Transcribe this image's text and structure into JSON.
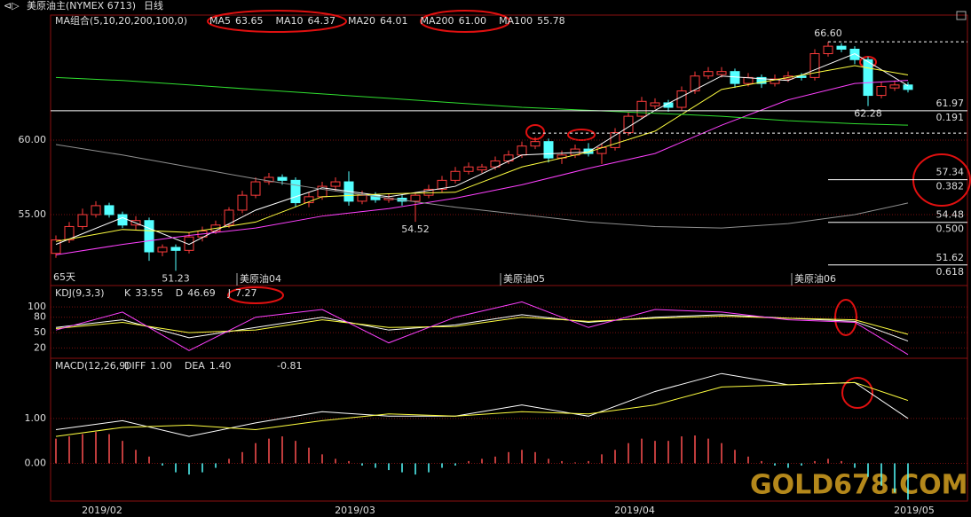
{
  "chart_data": [
    {
      "type": "candlestick",
      "title": "美原油主(NYMEX 6713)",
      "period": "日线",
      "indicator": "MA组合(5,10,20,200,100,0)",
      "up_color": "#ff3c3c",
      "down_color": "#54ffff",
      "ylim": [
        50.24,
        68.33
      ],
      "yticks": [
        {
          "value": 60,
          "label": "60.00"
        },
        {
          "value": 55,
          "label": "55.00"
        }
      ],
      "grid": true,
      "ohlc": [
        [
          52.4,
          53.6,
          52.1,
          53.3
        ],
        [
          53.3,
          54.5,
          53.1,
          54.2
        ],
        [
          54.2,
          55.4,
          54.0,
          55.0
        ],
        [
          55.0,
          55.9,
          54.8,
          55.6
        ],
        [
          55.6,
          55.8,
          54.8,
          55.0
        ],
        [
          55.0,
          55.2,
          54.1,
          54.3
        ],
        [
          54.3,
          54.9,
          54.0,
          54.6
        ],
        [
          54.6,
          54.8,
          51.9,
          52.5
        ],
        [
          52.5,
          53.0,
          52.2,
          52.8
        ],
        [
          52.8,
          53.0,
          51.23,
          52.6
        ],
        [
          52.6,
          53.8,
          52.4,
          53.5
        ],
        [
          53.5,
          54.2,
          53.2,
          53.9
        ],
        [
          53.9,
          54.6,
          53.7,
          54.3
        ],
        [
          54.3,
          55.5,
          54.1,
          55.3
        ],
        [
          55.3,
          56.6,
          55.1,
          56.3
        ],
        [
          56.3,
          57.5,
          56.1,
          57.2
        ],
        [
          57.2,
          57.8,
          57.0,
          57.5
        ],
        [
          57.5,
          57.7,
          57.0,
          57.3
        ],
        [
          57.3,
          57.5,
          55.5,
          55.8
        ],
        [
          55.8,
          56.5,
          55.5,
          56.2
        ],
        [
          56.2,
          57.2,
          56.0,
          56.9
        ],
        [
          56.9,
          57.5,
          56.6,
          57.2
        ],
        [
          57.2,
          57.9,
          55.6,
          55.9
        ],
        [
          55.9,
          56.6,
          55.7,
          56.3
        ],
        [
          56.3,
          56.5,
          55.8,
          56.0
        ],
        [
          56.0,
          56.4,
          55.8,
          56.1
        ],
        [
          56.1,
          56.3,
          55.6,
          55.9
        ],
        [
          55.9,
          56.5,
          54.52,
          56.3
        ],
        [
          56.3,
          57.0,
          56.1,
          56.7
        ],
        [
          56.7,
          57.6,
          56.5,
          57.3
        ],
        [
          57.3,
          58.2,
          57.1,
          57.9
        ],
        [
          57.9,
          58.5,
          57.7,
          58.2
        ],
        [
          58.0,
          58.4,
          57.8,
          58.2
        ],
        [
          58.2,
          58.9,
          58.0,
          58.6
        ],
        [
          58.6,
          59.3,
          58.4,
          59.0
        ],
        [
          59.0,
          59.9,
          58.8,
          59.6
        ],
        [
          59.6,
          60.2,
          59.4,
          59.9
        ],
        [
          59.9,
          60.1,
          58.5,
          58.8
        ],
        [
          58.8,
          59.3,
          58.4,
          59.0
        ],
        [
          59.0,
          59.7,
          58.8,
          59.4
        ],
        [
          59.4,
          59.8,
          58.9,
          59.1
        ],
        [
          59.1,
          59.8,
          58.4,
          59.5
        ],
        [
          59.5,
          60.8,
          59.3,
          60.5
        ],
        [
          60.5,
          61.9,
          60.3,
          61.6
        ],
        [
          61.6,
          62.9,
          61.4,
          62.6
        ],
        [
          62.3,
          62.8,
          62.1,
          62.5
        ],
        [
          62.5,
          62.7,
          61.9,
          62.2
        ],
        [
          62.2,
          63.6,
          62.0,
          63.3
        ],
        [
          63.3,
          64.6,
          63.1,
          64.3
        ],
        [
          64.3,
          64.9,
          64.1,
          64.6
        ],
        [
          64.4,
          64.9,
          64.2,
          64.6
        ],
        [
          64.6,
          64.8,
          63.5,
          63.8
        ],
        [
          63.8,
          64.5,
          63.6,
          64.2
        ],
        [
          64.2,
          64.4,
          63.5,
          63.8
        ],
        [
          63.8,
          64.4,
          63.6,
          64.1
        ],
        [
          64.1,
          64.6,
          63.9,
          64.3
        ],
        [
          64.3,
          64.5,
          64.0,
          64.2
        ],
        [
          64.2,
          66.1,
          64.0,
          65.8
        ],
        [
          65.8,
          66.6,
          65.6,
          66.3
        ],
        [
          66.3,
          66.5,
          65.9,
          66.1
        ],
        [
          66.1,
          66.3,
          65.1,
          65.4
        ],
        [
          65.4,
          65.6,
          62.28,
          63.0
        ],
        [
          63.0,
          63.9,
          62.8,
          63.6
        ],
        [
          63.5,
          64.0,
          63.3,
          63.7
        ],
        [
          63.7,
          63.9,
          63.2,
          63.4
        ]
      ],
      "series": [
        {
          "name": "MA5",
          "color": "#ffffff",
          "legend_value": "63.65",
          "x": [
            0,
            5,
            10,
            15,
            20,
            25,
            30,
            35,
            40,
            45,
            50,
            55,
            60,
            64
          ],
          "values": [
            53.0,
            54.8,
            53.0,
            55.3,
            56.8,
            56.2,
            56.9,
            59.0,
            59.2,
            62.0,
            64.3,
            64.0,
            65.8,
            63.65
          ]
        },
        {
          "name": "MA10",
          "color": "#ffff40",
          "legend_value": "64.37",
          "x": [
            0,
            5,
            10,
            15,
            20,
            25,
            30,
            35,
            40,
            45,
            50,
            55,
            60,
            64
          ],
          "values": [
            53.2,
            54.0,
            53.8,
            54.5,
            56.2,
            56.4,
            56.5,
            58.2,
            59.2,
            60.6,
            63.4,
            64.2,
            65.0,
            64.37
          ]
        },
        {
          "name": "MA20",
          "color": "#ff40ff",
          "legend_value": "64.01",
          "x": [
            0,
            5,
            10,
            15,
            20,
            25,
            30,
            35,
            40,
            45,
            50,
            55,
            60,
            64
          ],
          "values": [
            52.3,
            53.0,
            53.6,
            54.1,
            54.9,
            55.4,
            56.1,
            57.0,
            58.1,
            59.1,
            61.0,
            62.7,
            63.8,
            64.01
          ]
        },
        {
          "name": "MA200",
          "color": "#30e030",
          "legend_value": "61.00",
          "x": [
            0,
            5,
            10,
            15,
            20,
            25,
            30,
            35,
            40,
            45,
            50,
            55,
            60,
            64
          ],
          "values": [
            64.2,
            64.0,
            63.7,
            63.4,
            63.1,
            62.8,
            62.5,
            62.2,
            62.0,
            61.8,
            61.6,
            61.3,
            61.1,
            61.0
          ]
        },
        {
          "name": "MA100",
          "color": "#909090",
          "legend_value": "55.78",
          "x": [
            0,
            5,
            10,
            15,
            20,
            25,
            30,
            35,
            40,
            45,
            50,
            55,
            60,
            64
          ],
          "values": [
            59.7,
            59.0,
            58.2,
            57.4,
            56.7,
            56.1,
            55.5,
            55.0,
            54.5,
            54.2,
            54.1,
            54.4,
            55.0,
            55.78
          ]
        }
      ],
      "extremes": [
        {
          "index": 58,
          "kind": "high",
          "label": "66.60",
          "color": "#ff4040"
        },
        {
          "index": 61,
          "kind": "low",
          "label": "62.28",
          "color": "#54ffff"
        },
        {
          "index": 9,
          "kind": "low",
          "label": "51.23",
          "color": "#54ffff"
        },
        {
          "index": 27,
          "kind": "low",
          "label": "54.52",
          "color": "#54ffff"
        }
      ],
      "fib_levels": [
        {
          "value": 61.97,
          "ratio": 0.191
        },
        {
          "value": 57.34,
          "ratio": 0.382
        },
        {
          "value": 54.48,
          "ratio": {
            "value": 0.5,
            "label": "0.500"
          }
        },
        {
          "value": 51.62,
          "ratio": 0.618
        }
      ],
      "dashed_levels": [
        66.6,
        60.47
      ],
      "contract_labels": [
        "美原油04",
        "美原油05",
        "美原油06"
      ],
      "days_label": "65天"
    },
    {
      "type": "line",
      "title": "KDJ(9,3,3)",
      "ylim": [
        0,
        140
      ],
      "yticks": [
        100,
        80,
        50,
        20
      ],
      "grid": true,
      "series": [
        {
          "name": "K",
          "color": "#ffffff",
          "legend_value": "33.55",
          "x": [
            0,
            5,
            10,
            15,
            20,
            25,
            30,
            35,
            40,
            45,
            50,
            55,
            60,
            64
          ],
          "values": [
            60,
            75,
            40,
            60,
            80,
            55,
            65,
            85,
            70,
            80,
            85,
            78,
            72,
            33.55
          ]
        },
        {
          "name": "D",
          "color": "#ffff40",
          "legend_value": "46.69",
          "x": [
            0,
            5,
            10,
            15,
            20,
            25,
            30,
            35,
            40,
            45,
            50,
            55,
            60,
            64
          ],
          "values": [
            58,
            70,
            50,
            55,
            75,
            60,
            62,
            80,
            72,
            78,
            82,
            78,
            75,
            46.69
          ]
        },
        {
          "name": "J",
          "color": "#ff40ff",
          "legend_value": "7.27",
          "x": [
            0,
            5,
            10,
            15,
            20,
            25,
            30,
            35,
            40,
            45,
            50,
            55,
            60,
            64
          ],
          "values": [
            55,
            90,
            15,
            80,
            95,
            30,
            80,
            110,
            60,
            95,
            90,
            75,
            70,
            7.27
          ]
        }
      ]
    },
    {
      "type": "macd",
      "title": "MACD(12,26,9)",
      "ylim": [
        -0.84,
        2.32
      ],
      "yticks": [
        {
          "value": 1,
          "label": "1.00"
        },
        {
          "value": 0,
          "label": "0.00"
        }
      ],
      "grid": true,
      "up_color": "#ff5050",
      "down_color": "#54ffff",
      "series": [
        {
          "name": "DIFF",
          "color": "#ffffff",
          "legend_value": "1.00",
          "x": [
            0,
            5,
            10,
            15,
            20,
            25,
            30,
            35,
            40,
            45,
            50,
            55,
            60,
            64
          ],
          "values": [
            0.75,
            0.95,
            0.6,
            0.9,
            1.15,
            1.05,
            1.05,
            1.3,
            1.05,
            1.6,
            2.0,
            1.75,
            1.8,
            1.0
          ]
        },
        {
          "name": "DEA",
          "color": "#ffff40",
          "legend_value": "1.40",
          "x": [
            0,
            5,
            10,
            15,
            20,
            25,
            30,
            35,
            40,
            45,
            50,
            55,
            60,
            64
          ],
          "values": [
            0.6,
            0.8,
            0.85,
            0.75,
            0.95,
            1.1,
            1.05,
            1.15,
            1.1,
            1.3,
            1.7,
            1.75,
            1.8,
            1.4
          ]
        }
      ],
      "histogram": {
        "values": [
          0.55,
          0.6,
          0.65,
          0.7,
          0.65,
          0.5,
          0.3,
          0.15,
          -0.05,
          -0.2,
          -0.25,
          -0.2,
          -0.1,
          0.1,
          0.25,
          0.45,
          0.55,
          0.6,
          0.5,
          0.35,
          0.2,
          0.1,
          0.05,
          -0.05,
          -0.1,
          -0.15,
          -0.2,
          -0.25,
          -0.2,
          -0.1,
          -0.05,
          0.05,
          0.1,
          0.15,
          0.25,
          0.3,
          0.25,
          0.1,
          0.05,
          0.02,
          0.05,
          0.2,
          0.3,
          0.45,
          0.55,
          0.5,
          0.5,
          0.6,
          0.62,
          0.55,
          0.45,
          0.3,
          0.15,
          0.05,
          -0.05,
          -0.1,
          -0.05,
          0.05,
          0.1,
          0.05,
          -0.1,
          -0.3,
          -0.5,
          -0.65,
          -0.81
        ]
      }
    }
  ],
  "date_axis": [
    "2019/02",
    "2019/03",
    "2019/04",
    "2019/05"
  ],
  "watermark": "GOLD678.COM"
}
